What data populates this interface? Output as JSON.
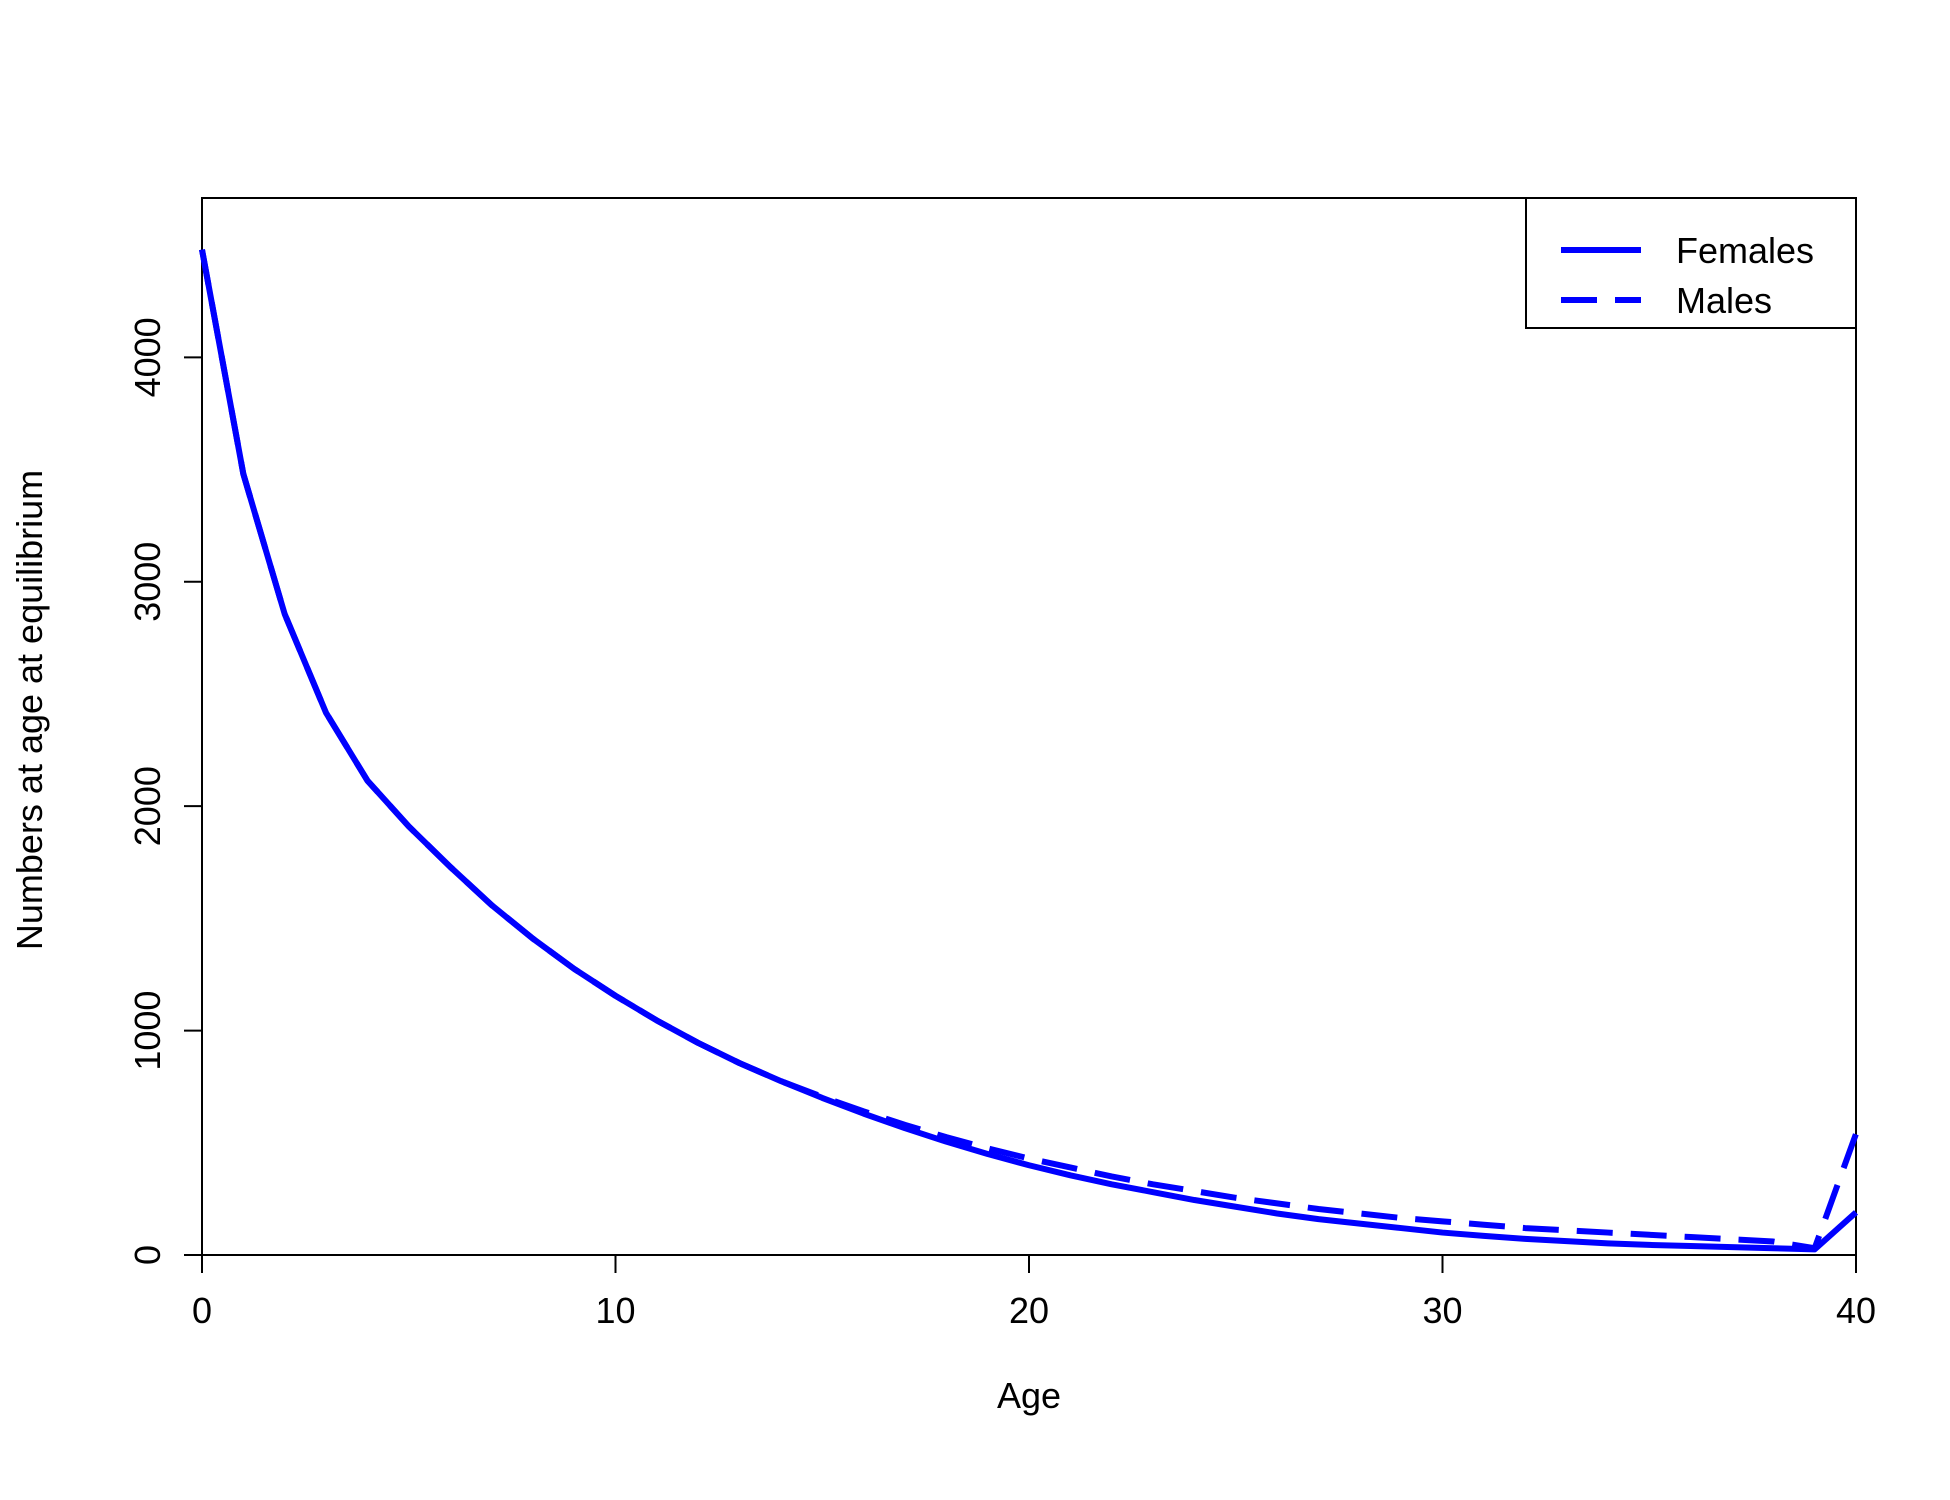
{
  "chart_data": {
    "type": "line",
    "x_label": "Age",
    "y_label": "Numbers at age at equilibrium",
    "x": [
      0,
      1,
      2,
      3,
      4,
      5,
      6,
      7,
      8,
      9,
      10,
      11,
      12,
      13,
      14,
      15,
      16,
      17,
      18,
      19,
      20,
      21,
      22,
      23,
      24,
      25,
      26,
      27,
      28,
      29,
      30,
      31,
      32,
      33,
      34,
      35,
      36,
      37,
      38,
      39,
      40
    ],
    "series": [
      {
        "name": "Females",
        "color": "#0000ff",
        "linestyle": "solid",
        "values": [
          4480,
          3480,
          2856,
          2416,
          2114,
          1910,
          1730,
          1560,
          1410,
          1275,
          1155,
          1045,
          945,
          855,
          775,
          700,
          630,
          565,
          505,
          450,
          400,
          355,
          315,
          280,
          245,
          215,
          185,
          160,
          140,
          120,
          100,
          85,
          72,
          62,
          52,
          45,
          40,
          35,
          30,
          25,
          190
        ]
      },
      {
        "name": "Males",
        "color": "#0000ff",
        "linestyle": "dashed",
        "values": [
          4480,
          3480,
          2856,
          2416,
          2114,
          1910,
          1730,
          1560,
          1410,
          1275,
          1155,
          1045,
          945,
          855,
          775,
          705,
          640,
          580,
          525,
          475,
          430,
          390,
          350,
          315,
          285,
          255,
          230,
          205,
          185,
          165,
          150,
          135,
          120,
          110,
          100,
          90,
          80,
          70,
          60,
          30,
          540
        ]
      }
    ],
    "xlim": [
      0,
      40
    ],
    "ylim": [
      0,
      4710
    ],
    "xticks": [
      0,
      10,
      20,
      30,
      40
    ],
    "yticks": [
      0,
      1000,
      2000,
      3000,
      4000
    ],
    "legend": "top-right"
  }
}
